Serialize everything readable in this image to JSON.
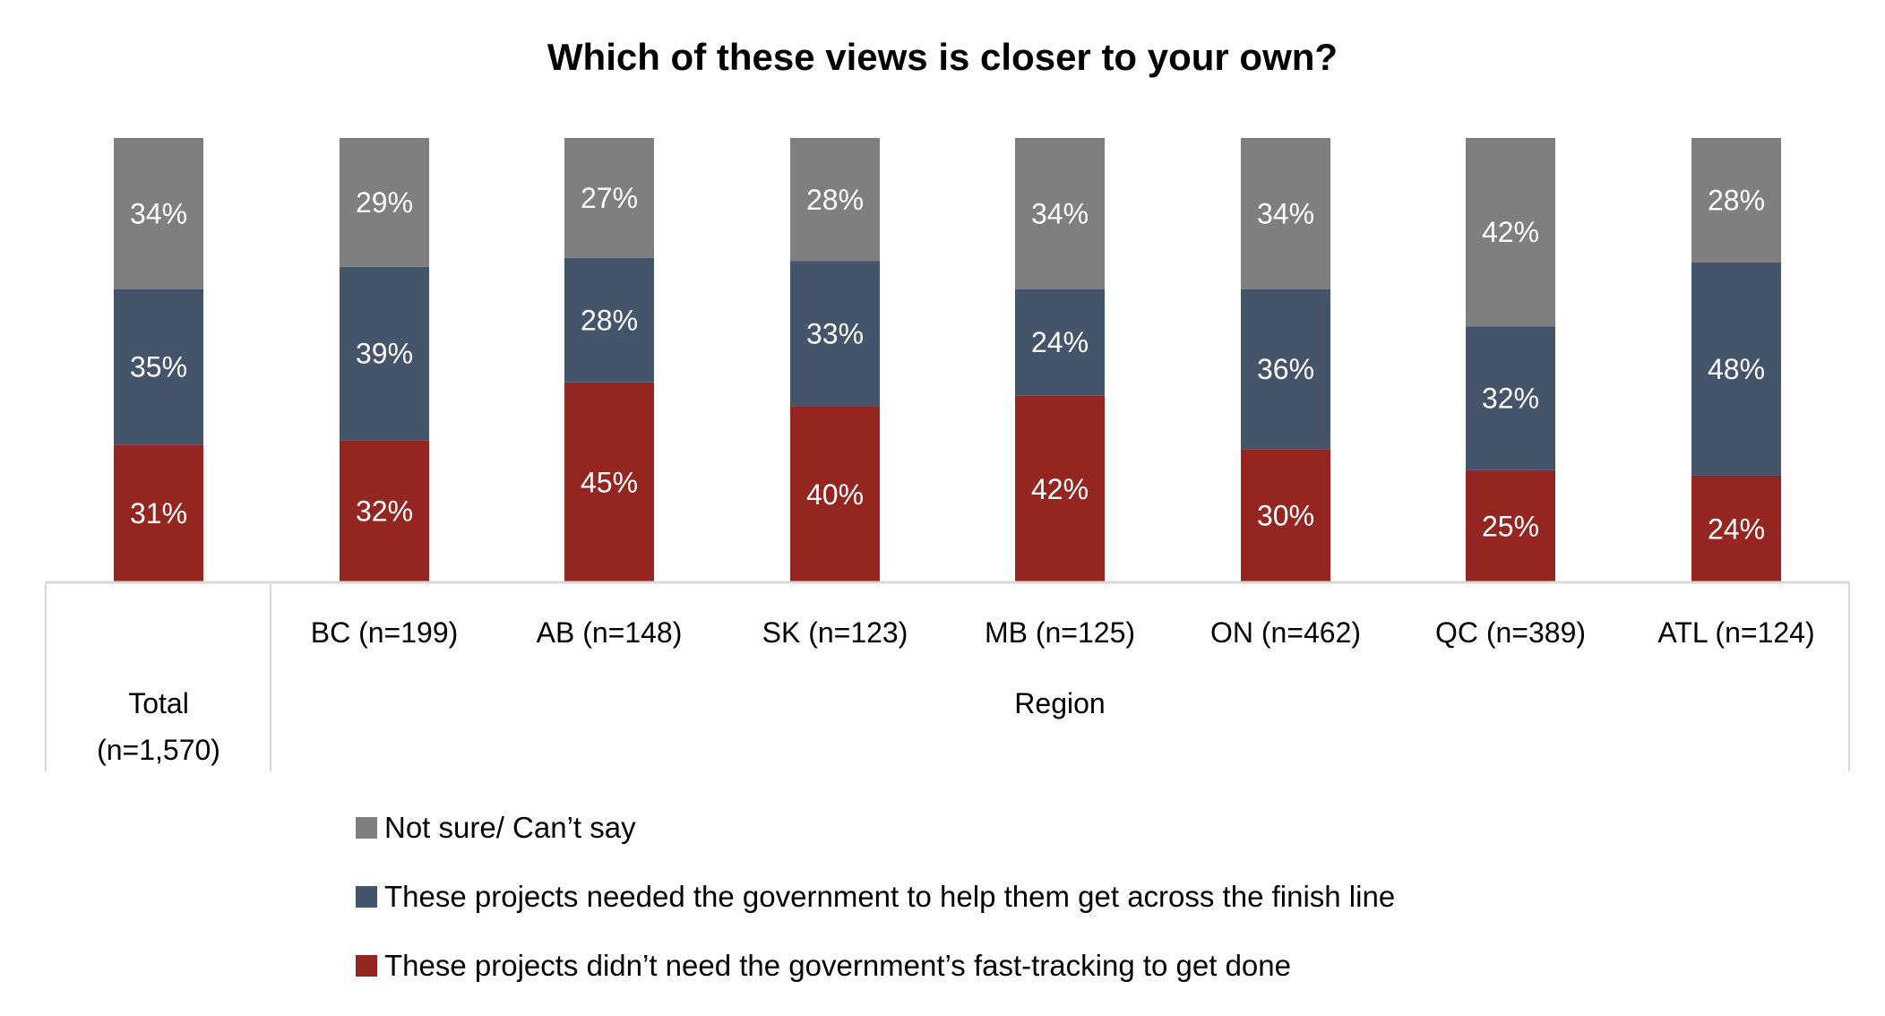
{
  "chart_data": {
    "type": "bar",
    "stacked": true,
    "title": "Which of these views is closer to your own?",
    "categories": [
      "Total\n(n=1,570)",
      "BC (n=199)",
      "AB (n=148)",
      "SK (n=123)",
      "MB (n=125)",
      "ON (n=462)",
      "QC (n=389)",
      "ATL (n=124)"
    ],
    "total_label_lines": [
      "Total",
      "(n=1,570)"
    ],
    "group_label": "Region",
    "series": [
      {
        "name": "These projects didn’t need the government’s fast-tracking to get done",
        "color": "#952520",
        "values": [
          31,
          32,
          45,
          40,
          42,
          30,
          25,
          24
        ]
      },
      {
        "name": "These projects needed the government to help them get across the finish line",
        "color": "#44546a",
        "values": [
          35,
          39,
          28,
          33,
          24,
          36,
          32,
          48
        ]
      },
      {
        "name": "Not sure/ Can’t say",
        "color": "#7f7f7f",
        "values": [
          34,
          29,
          27,
          28,
          34,
          34,
          42,
          28
        ]
      }
    ],
    "legend_order": [
      2,
      1,
      0
    ],
    "legend_position": "bottom",
    "ylim": [
      0,
      100
    ],
    "grid": false
  }
}
